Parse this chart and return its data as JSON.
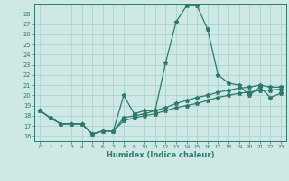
{
  "xlabel": "Humidex (Indice chaleur)",
  "x": [
    0,
    1,
    2,
    3,
    4,
    5,
    6,
    7,
    8,
    9,
    10,
    11,
    12,
    13,
    14,
    15,
    16,
    17,
    18,
    19,
    20,
    21,
    22,
    23
  ],
  "line1": [
    18.5,
    17.8,
    17.2,
    17.2,
    17.2,
    16.2,
    16.5,
    16.5,
    20.0,
    18.2,
    18.5,
    18.5,
    23.2,
    27.2,
    28.8,
    28.8,
    26.5,
    22.0,
    21.2,
    21.0,
    20.0,
    20.8,
    19.8,
    20.2
  ],
  "line2": [
    18.5,
    17.8,
    17.2,
    17.2,
    17.2,
    16.2,
    16.5,
    16.5,
    17.8,
    18.0,
    18.2,
    18.5,
    18.8,
    19.2,
    19.5,
    19.8,
    20.0,
    20.3,
    20.5,
    20.7,
    20.8,
    21.0,
    20.8,
    20.8
  ],
  "line3": [
    18.5,
    17.8,
    17.2,
    17.2,
    17.2,
    16.2,
    16.5,
    16.5,
    17.5,
    17.8,
    18.0,
    18.2,
    18.5,
    18.8,
    19.0,
    19.2,
    19.5,
    19.8,
    20.0,
    20.2,
    20.3,
    20.5,
    20.5,
    20.6
  ],
  "color": "#2d7a6b",
  "bg_color": "#cde8e5",
  "grid_color": "#aacfcb",
  "ylim": [
    15.5,
    29.0
  ],
  "yticks": [
    16,
    17,
    18,
    19,
    20,
    21,
    22,
    23,
    24,
    25,
    26,
    27,
    28
  ],
  "xlim": [
    -0.5,
    23.5
  ],
  "xticks": [
    0,
    1,
    2,
    3,
    4,
    5,
    6,
    7,
    8,
    9,
    10,
    11,
    12,
    13,
    14,
    15,
    16,
    17,
    18,
    19,
    20,
    21,
    22,
    23
  ]
}
